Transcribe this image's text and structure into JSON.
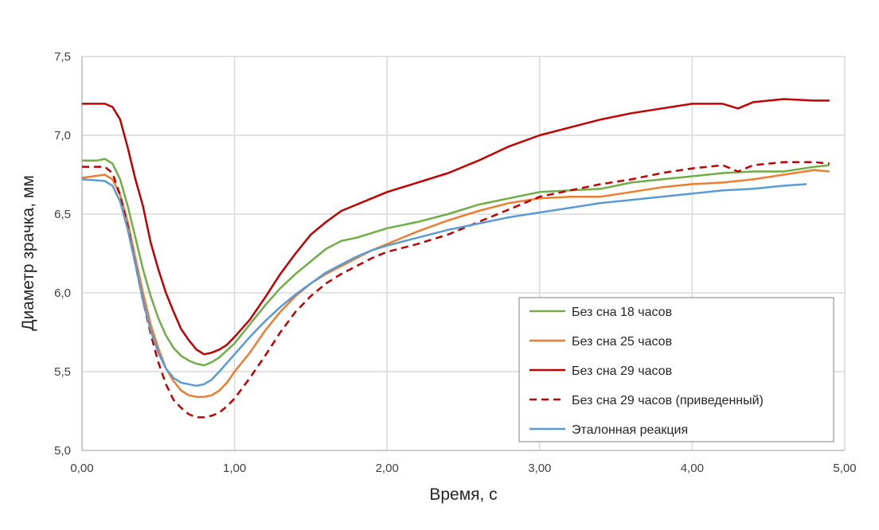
{
  "chart_data": {
    "type": "line",
    "title": "",
    "xlabel": "Время, с",
    "ylabel": "Диаметр зрачка, мм",
    "xlim": [
      0,
      5
    ],
    "ylim": [
      5.0,
      7.5
    ],
    "xticks": [
      "0,00",
      "1,00",
      "2,00",
      "3,00",
      "4,00",
      "5,00"
    ],
    "yticks": [
      "5,0",
      "5,5",
      "6,0",
      "6,5",
      "7,0",
      "7,5"
    ],
    "grid": true,
    "legend_position": "bottom-right",
    "series": [
      {
        "name": "Без сна 18 часов",
        "color": "#70AD47",
        "dash": false,
        "points": [
          [
            0,
            6.84
          ],
          [
            0.1,
            6.84
          ],
          [
            0.15,
            6.85
          ],
          [
            0.2,
            6.82
          ],
          [
            0.25,
            6.72
          ],
          [
            0.3,
            6.55
          ],
          [
            0.35,
            6.35
          ],
          [
            0.4,
            6.15
          ],
          [
            0.45,
            5.98
          ],
          [
            0.5,
            5.84
          ],
          [
            0.55,
            5.73
          ],
          [
            0.6,
            5.65
          ],
          [
            0.65,
            5.6
          ],
          [
            0.7,
            5.57
          ],
          [
            0.75,
            5.55
          ],
          [
            0.8,
            5.54
          ],
          [
            0.85,
            5.56
          ],
          [
            0.9,
            5.59
          ],
          [
            1.0,
            5.68
          ],
          [
            1.1,
            5.8
          ],
          [
            1.2,
            5.92
          ],
          [
            1.3,
            6.03
          ],
          [
            1.4,
            6.12
          ],
          [
            1.5,
            6.2
          ],
          [
            1.6,
            6.28
          ],
          [
            1.7,
            6.33
          ],
          [
            1.8,
            6.35
          ],
          [
            1.9,
            6.38
          ],
          [
            2.0,
            6.41
          ],
          [
            2.2,
            6.45
          ],
          [
            2.4,
            6.5
          ],
          [
            2.6,
            6.56
          ],
          [
            2.8,
            6.6
          ],
          [
            3.0,
            6.64
          ],
          [
            3.2,
            6.65
          ],
          [
            3.4,
            6.66
          ],
          [
            3.6,
            6.7
          ],
          [
            3.8,
            6.72
          ],
          [
            4.0,
            6.74
          ],
          [
            4.2,
            6.76
          ],
          [
            4.4,
            6.77
          ],
          [
            4.6,
            6.77
          ],
          [
            4.8,
            6.8
          ],
          [
            4.9,
            6.81
          ]
        ]
      },
      {
        "name": "Без сна 25 часов",
        "color": "#ED7D31",
        "dash": false,
        "points": [
          [
            0,
            6.73
          ],
          [
            0.15,
            6.75
          ],
          [
            0.2,
            6.72
          ],
          [
            0.25,
            6.62
          ],
          [
            0.3,
            6.45
          ],
          [
            0.35,
            6.22
          ],
          [
            0.4,
            6.0
          ],
          [
            0.45,
            5.8
          ],
          [
            0.5,
            5.65
          ],
          [
            0.55,
            5.52
          ],
          [
            0.6,
            5.44
          ],
          [
            0.65,
            5.38
          ],
          [
            0.7,
            5.35
          ],
          [
            0.75,
            5.34
          ],
          [
            0.8,
            5.34
          ],
          [
            0.85,
            5.35
          ],
          [
            0.9,
            5.38
          ],
          [
            0.95,
            5.43
          ],
          [
            1.0,
            5.5
          ],
          [
            1.1,
            5.62
          ],
          [
            1.2,
            5.76
          ],
          [
            1.3,
            5.88
          ],
          [
            1.4,
            5.98
          ],
          [
            1.5,
            6.06
          ],
          [
            1.6,
            6.12
          ],
          [
            1.7,
            6.17
          ],
          [
            1.8,
            6.22
          ],
          [
            1.9,
            6.27
          ],
          [
            2.0,
            6.31
          ],
          [
            2.2,
            6.39
          ],
          [
            2.4,
            6.46
          ],
          [
            2.6,
            6.52
          ],
          [
            2.8,
            6.57
          ],
          [
            3.0,
            6.6
          ],
          [
            3.2,
            6.61
          ],
          [
            3.4,
            6.61
          ],
          [
            3.6,
            6.64
          ],
          [
            3.8,
            6.67
          ],
          [
            4.0,
            6.69
          ],
          [
            4.2,
            6.7
          ],
          [
            4.4,
            6.72
          ],
          [
            4.6,
            6.75
          ],
          [
            4.8,
            6.78
          ],
          [
            4.9,
            6.77
          ]
        ]
      },
      {
        "name": "Без сна 29 часов",
        "color": "#C00000",
        "dash": false,
        "points": [
          [
            0,
            7.2
          ],
          [
            0.1,
            7.2
          ],
          [
            0.15,
            7.2
          ],
          [
            0.2,
            7.18
          ],
          [
            0.25,
            7.1
          ],
          [
            0.3,
            6.92
          ],
          [
            0.35,
            6.72
          ],
          [
            0.4,
            6.55
          ],
          [
            0.45,
            6.32
          ],
          [
            0.5,
            6.15
          ],
          [
            0.55,
            6.0
          ],
          [
            0.6,
            5.88
          ],
          [
            0.65,
            5.77
          ],
          [
            0.7,
            5.7
          ],
          [
            0.75,
            5.64
          ],
          [
            0.8,
            5.61
          ],
          [
            0.85,
            5.62
          ],
          [
            0.9,
            5.64
          ],
          [
            0.95,
            5.67
          ],
          [
            1.0,
            5.72
          ],
          [
            1.1,
            5.83
          ],
          [
            1.2,
            5.97
          ],
          [
            1.3,
            6.12
          ],
          [
            1.4,
            6.25
          ],
          [
            1.5,
            6.37
          ],
          [
            1.6,
            6.45
          ],
          [
            1.7,
            6.52
          ],
          [
            1.8,
            6.56
          ],
          [
            1.9,
            6.6
          ],
          [
            2.0,
            6.64
          ],
          [
            2.2,
            6.7
          ],
          [
            2.4,
            6.76
          ],
          [
            2.6,
            6.84
          ],
          [
            2.8,
            6.93
          ],
          [
            3.0,
            7.0
          ],
          [
            3.2,
            7.05
          ],
          [
            3.4,
            7.1
          ],
          [
            3.6,
            7.14
          ],
          [
            3.8,
            7.17
          ],
          [
            4.0,
            7.2
          ],
          [
            4.2,
            7.2
          ],
          [
            4.3,
            7.17
          ],
          [
            4.4,
            7.21
          ],
          [
            4.6,
            7.23
          ],
          [
            4.8,
            7.22
          ],
          [
            4.9,
            7.22
          ]
        ]
      },
      {
        "name": "Без сна 29 часов (приведенный)",
        "color": "#C00000",
        "dash": true,
        "points": [
          [
            0,
            6.8
          ],
          [
            0.15,
            6.8
          ],
          [
            0.2,
            6.76
          ],
          [
            0.25,
            6.62
          ],
          [
            0.3,
            6.42
          ],
          [
            0.35,
            6.18
          ],
          [
            0.4,
            5.95
          ],
          [
            0.45,
            5.74
          ],
          [
            0.5,
            5.56
          ],
          [
            0.55,
            5.42
          ],
          [
            0.6,
            5.32
          ],
          [
            0.65,
            5.27
          ],
          [
            0.7,
            5.23
          ],
          [
            0.75,
            5.21
          ],
          [
            0.8,
            5.21
          ],
          [
            0.85,
            5.22
          ],
          [
            0.9,
            5.24
          ],
          [
            0.95,
            5.28
          ],
          [
            1.0,
            5.33
          ],
          [
            1.1,
            5.46
          ],
          [
            1.2,
            5.6
          ],
          [
            1.3,
            5.75
          ],
          [
            1.4,
            5.88
          ],
          [
            1.5,
            5.98
          ],
          [
            1.6,
            6.06
          ],
          [
            1.7,
            6.12
          ],
          [
            1.8,
            6.17
          ],
          [
            1.9,
            6.22
          ],
          [
            2.0,
            6.26
          ],
          [
            2.2,
            6.31
          ],
          [
            2.4,
            6.37
          ],
          [
            2.6,
            6.45
          ],
          [
            2.8,
            6.53
          ],
          [
            3.0,
            6.61
          ],
          [
            3.2,
            6.65
          ],
          [
            3.4,
            6.69
          ],
          [
            3.6,
            6.72
          ],
          [
            3.8,
            6.76
          ],
          [
            4.0,
            6.79
          ],
          [
            4.2,
            6.81
          ],
          [
            4.3,
            6.77
          ],
          [
            4.4,
            6.81
          ],
          [
            4.6,
            6.83
          ],
          [
            4.8,
            6.83
          ],
          [
            4.9,
            6.82
          ]
        ]
      },
      {
        "name": "Эталонная реакция",
        "color": "#5B9BD5",
        "dash": false,
        "points": [
          [
            0,
            6.72
          ],
          [
            0.15,
            6.71
          ],
          [
            0.2,
            6.68
          ],
          [
            0.25,
            6.58
          ],
          [
            0.3,
            6.4
          ],
          [
            0.35,
            6.18
          ],
          [
            0.4,
            5.95
          ],
          [
            0.45,
            5.76
          ],
          [
            0.5,
            5.62
          ],
          [
            0.55,
            5.52
          ],
          [
            0.6,
            5.46
          ],
          [
            0.65,
            5.43
          ],
          [
            0.7,
            5.42
          ],
          [
            0.75,
            5.41
          ],
          [
            0.8,
            5.42
          ],
          [
            0.85,
            5.45
          ],
          [
            0.9,
            5.5
          ],
          [
            1.0,
            5.61
          ],
          [
            1.1,
            5.72
          ],
          [
            1.2,
            5.82
          ],
          [
            1.3,
            5.91
          ],
          [
            1.4,
            5.99
          ],
          [
            1.5,
            6.06
          ],
          [
            1.6,
            6.13
          ],
          [
            1.7,
            6.18
          ],
          [
            1.8,
            6.23
          ],
          [
            1.9,
            6.27
          ],
          [
            2.0,
            6.3
          ],
          [
            2.2,
            6.35
          ],
          [
            2.4,
            6.4
          ],
          [
            2.6,
            6.44
          ],
          [
            2.8,
            6.48
          ],
          [
            3.0,
            6.51
          ],
          [
            3.2,
            6.54
          ],
          [
            3.4,
            6.57
          ],
          [
            3.6,
            6.59
          ],
          [
            3.8,
            6.61
          ],
          [
            4.0,
            6.63
          ],
          [
            4.2,
            6.65
          ],
          [
            4.4,
            6.66
          ],
          [
            4.6,
            6.68
          ],
          [
            4.75,
            6.69
          ]
        ]
      }
    ]
  }
}
